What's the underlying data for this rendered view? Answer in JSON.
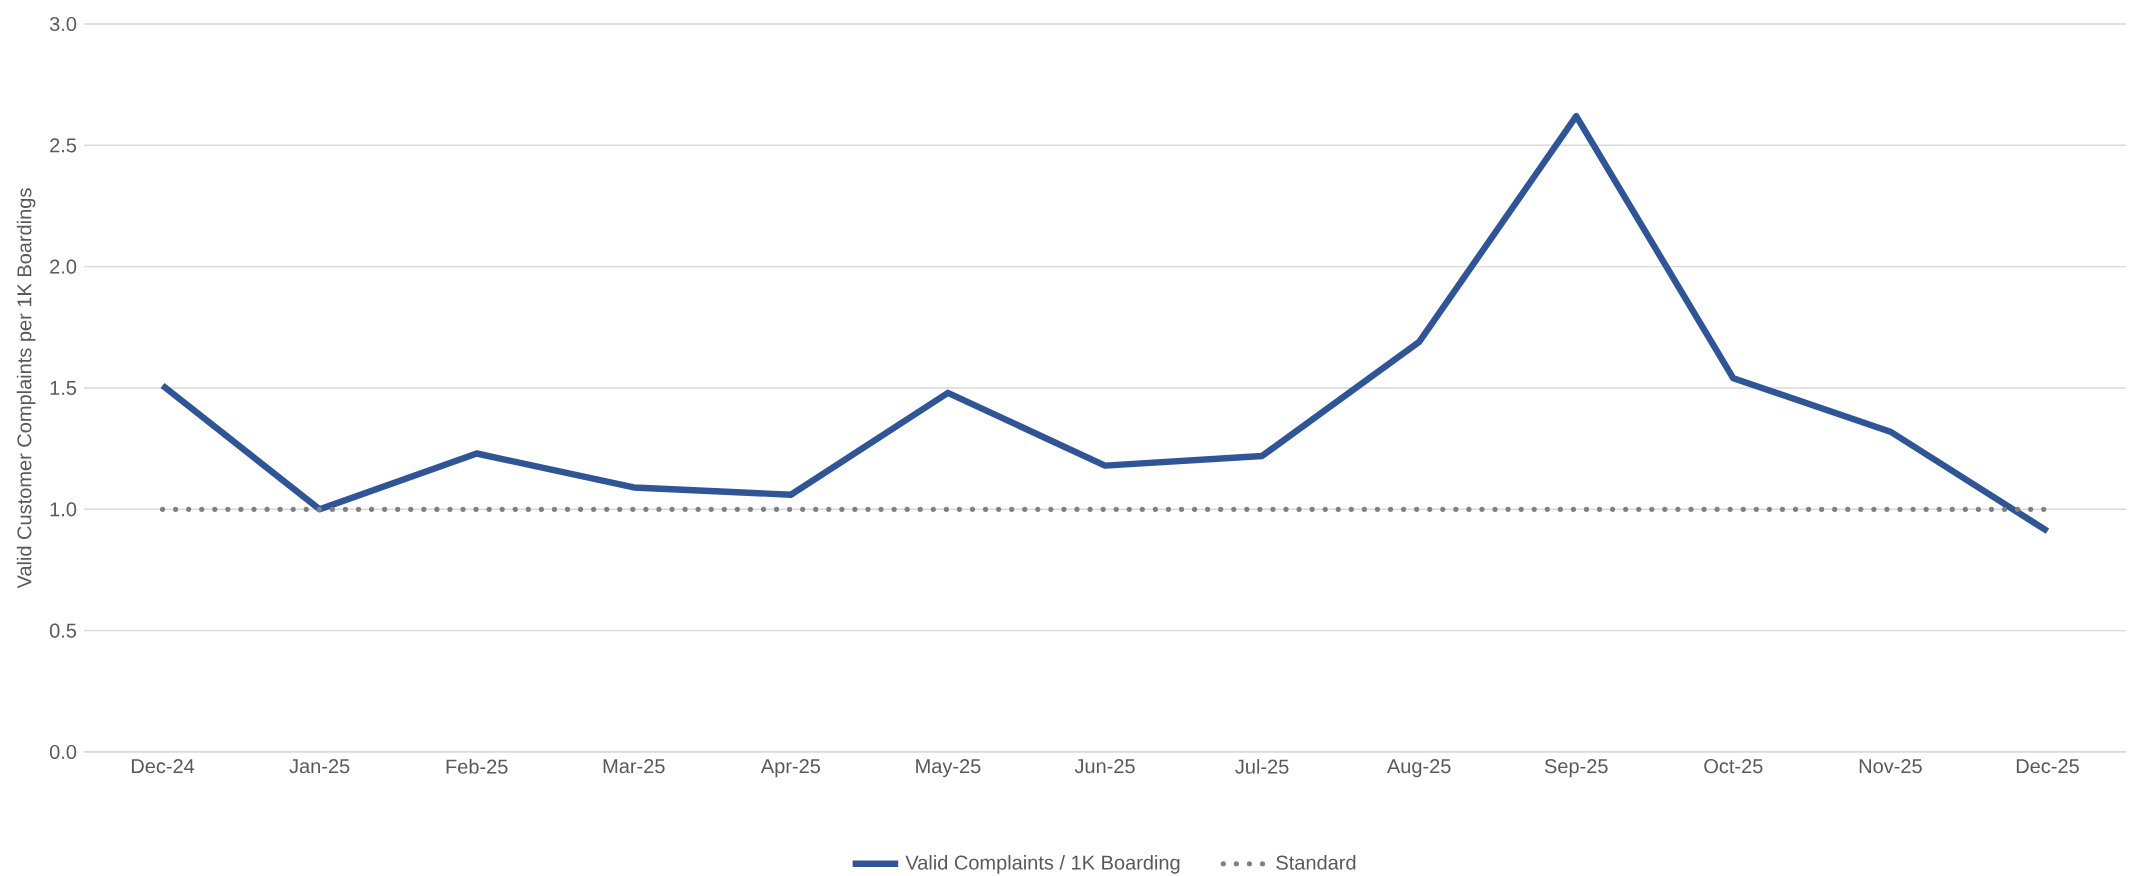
{
  "chart_data": {
    "type": "line",
    "ylabel": "Valid Customer Complaints per 1K Boardings",
    "categories": [
      "Dec-24",
      "Jan-25",
      "Feb-25",
      "Mar-25",
      "Apr-25",
      "May-25",
      "Jun-25",
      "Jul-25",
      "Aug-25",
      "Sep-25",
      "Oct-25",
      "Nov-25",
      "Dec-25"
    ],
    "series": [
      {
        "name": "Valid Complaints / 1K Boarding",
        "color": "#2f5597",
        "line_style": "solid",
        "values": [
          1.51,
          1.0,
          1.23,
          1.09,
          1.06,
          1.48,
          1.18,
          1.22,
          1.69,
          2.62,
          1.54,
          1.32,
          0.91
        ]
      },
      {
        "name": "Standard",
        "color": "#808080",
        "line_style": "dotted",
        "values": [
          1.0,
          1.0,
          1.0,
          1.0,
          1.0,
          1.0,
          1.0,
          1.0,
          1.0,
          1.0,
          1.0,
          1.0,
          1.0
        ]
      }
    ],
    "ylim": [
      0,
      3.0
    ],
    "yticks": [
      {
        "value": 0,
        "label": "0.0"
      },
      {
        "value": 0.5,
        "label": "0.5"
      },
      {
        "value": 1,
        "label": "1.0"
      },
      {
        "value": 1.5,
        "label": "1.5"
      },
      {
        "value": 2,
        "label": "2.0"
      },
      {
        "value": 2.5,
        "label": "2.5"
      },
      {
        "value": 3,
        "label": "3.0"
      }
    ],
    "grid": "y",
    "legend": "bottom",
    "marker": "none"
  }
}
